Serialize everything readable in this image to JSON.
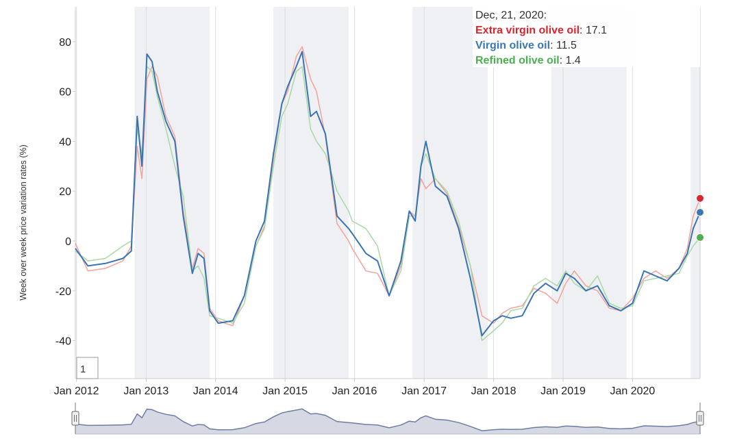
{
  "chart_data": {
    "type": "line",
    "title": "",
    "xlabel": "",
    "ylabel": "Week over week price variation rates (%)",
    "x_range": [
      "2011-12-26",
      "2020-12-21"
    ],
    "ylim": [
      -55,
      95
    ],
    "y_ticks": [
      80,
      60,
      40,
      20,
      0,
      -20,
      -40
    ],
    "x_tick_labels": [
      "Jan 2012",
      "Jan 2013",
      "Jan 2014",
      "Jan 2015",
      "Jan 2016",
      "Jan 2017",
      "Jan 2018",
      "Jan 2019",
      "Jan 2020"
    ],
    "grid": "vertical",
    "shaded_periods": [
      [
        "2012-11-01",
        "2013-12-01"
      ],
      [
        "2014-11-01",
        "2015-12-01"
      ],
      [
        "2016-11-01",
        "2017-12-01"
      ],
      [
        "2018-11-01",
        "2019-12-01"
      ],
      [
        "2020-11-01",
        "2020-12-21"
      ]
    ],
    "x": [
      "2011-12-26",
      "2012-03-01",
      "2012-06-01",
      "2012-09-01",
      "2012-10-15",
      "2012-11-15",
      "2012-12-10",
      "2013-01-05",
      "2013-02-01",
      "2013-03-01",
      "2013-04-15",
      "2013-06-01",
      "2013-07-15",
      "2013-09-01",
      "2013-10-01",
      "2013-11-01",
      "2013-12-01",
      "2014-01-15",
      "2014-04-01",
      "2014-06-01",
      "2014-08-01",
      "2014-09-15",
      "2014-11-01",
      "2014-12-15",
      "2015-01-15",
      "2015-03-01",
      "2015-04-01",
      "2015-05-15",
      "2015-06-15",
      "2015-08-01",
      "2015-10-01",
      "2015-12-01",
      "2015-12-20",
      "2016-03-01",
      "2016-05-01",
      "2016-07-01",
      "2016-09-01",
      "2016-10-15",
      "2016-11-15",
      "2016-12-15",
      "2017-01-10",
      "2017-03-01",
      "2017-05-01",
      "2017-07-01",
      "2017-09-01",
      "2017-11-01",
      "2018-01-01",
      "2018-02-15",
      "2018-04-01",
      "2018-06-01",
      "2018-08-01",
      "2018-10-01",
      "2018-12-01",
      "2019-01-15",
      "2019-03-01",
      "2019-05-01",
      "2019-07-01",
      "2019-09-01",
      "2019-11-01",
      "2020-01-01",
      "2020-03-01",
      "2020-05-01",
      "2020-07-01",
      "2020-09-01",
      "2020-10-15",
      "2020-11-15",
      "2020-12-21"
    ],
    "series": [
      {
        "name": "Extra virgin olive oil",
        "color": "#f4a19b",
        "tooltip_color": "#d9262e",
        "values": [
          -1,
          -12,
          -11,
          -8,
          -2,
          38,
          25,
          65,
          70,
          66,
          50,
          42,
          12,
          -11,
          -3,
          -5,
          -27,
          -32,
          -34,
          -22,
          -2,
          6,
          33,
          55,
          60,
          74,
          78,
          65,
          60,
          42,
          7,
          0,
          -3,
          -12,
          -13,
          -22,
          -10,
          12,
          10,
          25,
          21,
          25,
          19,
          6,
          -10,
          -30,
          -33,
          -29,
          -27,
          -26,
          -19,
          -21,
          -25,
          -17,
          -12,
          -18,
          -20,
          -27,
          -28,
          -23,
          -15,
          -12,
          -15,
          -11,
          -3,
          10,
          17.1
        ]
      },
      {
        "name": "Virgin olive oil",
        "color": "#3873b3",
        "tooltip_color": "#3a78b5",
        "values": [
          -3,
          -10,
          -9,
          -7,
          -4,
          50,
          30,
          75,
          72,
          60,
          48,
          40,
          10,
          -13,
          -5,
          -7,
          -28,
          -33,
          -32,
          -22,
          0,
          8,
          35,
          55,
          62,
          70,
          76,
          50,
          52,
          43,
          10,
          5,
          3,
          -5,
          -8,
          -22,
          -8,
          12,
          8,
          30,
          40,
          22,
          18,
          5,
          -15,
          -38,
          -32,
          -30,
          -31,
          -30,
          -21,
          -17,
          -20,
          -13,
          -15,
          -20,
          -18,
          -26,
          -28,
          -25,
          -12,
          -14,
          -16,
          -11,
          -5,
          5,
          11.5
        ]
      },
      {
        "name": "Refined olive oil",
        "color": "#a6d9a3",
        "tooltip_color": "#4caf50",
        "values": [
          -4,
          -8,
          -7,
          -2,
          0,
          45,
          35,
          70,
          68,
          58,
          45,
          30,
          18,
          -12,
          -10,
          -15,
          -30,
          -31,
          -33,
          -25,
          -2,
          5,
          30,
          50,
          55,
          68,
          70,
          45,
          40,
          35,
          20,
          12,
          8,
          5,
          -2,
          -22,
          -12,
          10,
          10,
          30,
          35,
          25,
          20,
          8,
          -10,
          -40,
          -36,
          -33,
          -28,
          -27,
          -18,
          -15,
          -18,
          -12,
          -17,
          -20,
          -14,
          -25,
          -27,
          -26,
          -16,
          -15,
          -14,
          -13,
          -6,
          -2,
          1.4
        ]
      }
    ],
    "tooltip": {
      "date": "Dec, 21, 2020:",
      "rows": [
        {
          "name": "Extra virgin olive oil",
          "value": "17.1"
        },
        {
          "name": "Virgin olive oil",
          "value": "11.5"
        },
        {
          "name": "Refined olive oil",
          "value": "1.4"
        }
      ]
    },
    "zoom_label": "1",
    "navigator_series": "Virgin olive oil"
  }
}
